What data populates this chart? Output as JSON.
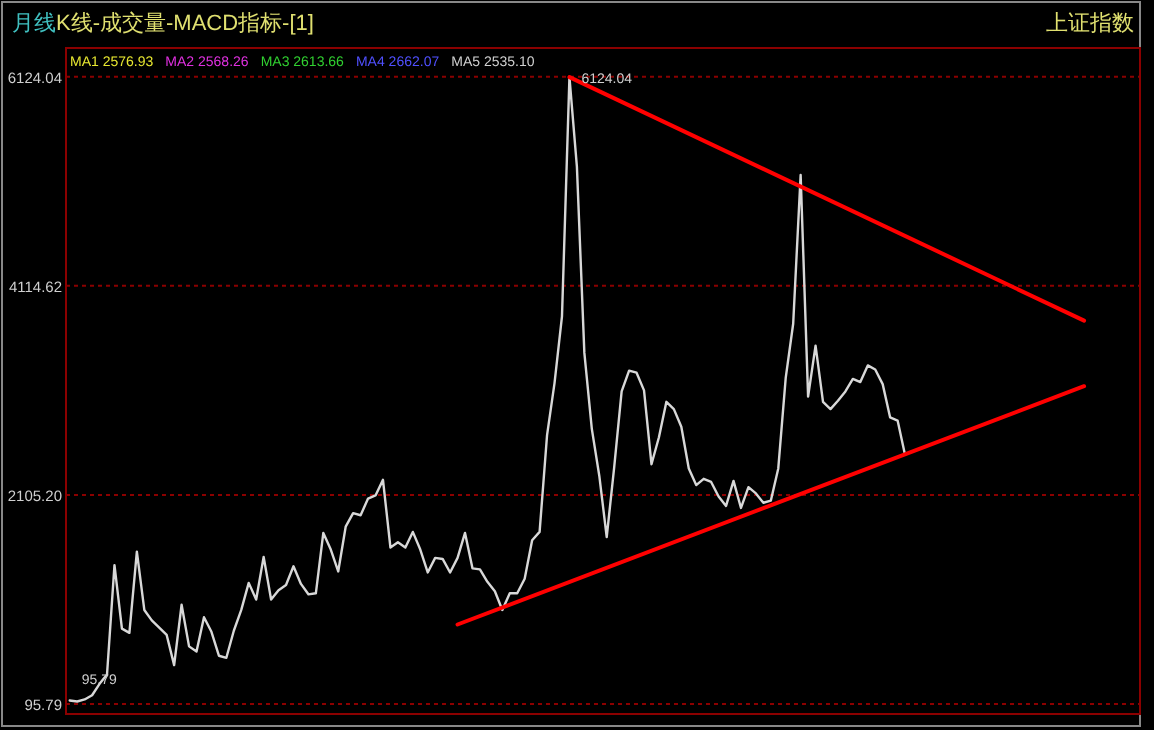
{
  "chart_data": {
    "type": "line",
    "title": "K线-成交量-MACD指标-[1]",
    "subtitle": "上证指数",
    "annotations": [
      "月线",
      "MA1 2576.93",
      "MA2 2568.26",
      "MA3 2613.66",
      "MA4 2662.07",
      "MA5 2535.10",
      "6124.04",
      "95.79"
    ],
    "categories": [
      null,
      null,
      null,
      null,
      null,
      null,
      null,
      null,
      null,
      null,
      null,
      null,
      null,
      null,
      null,
      null,
      null,
      null,
      null,
      null,
      null,
      null,
      null,
      null,
      null,
      null,
      null,
      null,
      null,
      null,
      null,
      null,
      null,
      null,
      null,
      null,
      null,
      null,
      null,
      null,
      null,
      null,
      null,
      null,
      null,
      null,
      null,
      null,
      null,
      null,
      null,
      null,
      null,
      null,
      null,
      null,
      null,
      null,
      null,
      null,
      null,
      null,
      null,
      null,
      null,
      null,
      null,
      null,
      null,
      null,
      null,
      null,
      null,
      null,
      null,
      null,
      null,
      null,
      null,
      null,
      null,
      null,
      null,
      null,
      null,
      null,
      null,
      null,
      null,
      null,
      null,
      null,
      null,
      null,
      null,
      null,
      null,
      null,
      null,
      null,
      null,
      null,
      null,
      null,
      null,
      null,
      null,
      null,
      null,
      null,
      null,
      null,
      null,
      null,
      null,
      null,
      null,
      null,
      null,
      null,
      null,
      null,
      null,
      null,
      null,
      null,
      null,
      null,
      null,
      null,
      null,
      null,
      null,
      null,
      null,
      null,
      null,
      null,
      null,
      null,
      null,
      null,
      null,
      null
    ],
    "ylim": [
      0,
      6400
    ],
    "yticks": [
      {
        "value": 95.79,
        "label": "95.79"
      },
      {
        "value": 2105.2,
        "label": "2105.20"
      },
      {
        "value": 4114.62,
        "label": "4114.62"
      },
      {
        "value": 6124.04,
        "label": "6124.04"
      }
    ],
    "tick_labels": "y",
    "grid": "y",
    "line_style": "solid",
    "series": [
      {
        "color": "#d8d8d8",
        "values": [
          130,
          120,
          140,
          180,
          290,
          380,
          1430,
          820,
          780,
          1560,
          1000,
          900,
          830,
          760,
          470,
          1050,
          650,
          600,
          930,
          790,
          560,
          540,
          800,
          1000,
          1260,
          1100,
          1510,
          1100,
          1190,
          1240,
          1420,
          1250,
          1150,
          1160,
          1740,
          1580,
          1370,
          1800,
          1930,
          1910,
          2070,
          2100,
          2250,
          1600,
          1650,
          1600,
          1750,
          1580,
          1360,
          1500,
          1490,
          1360,
          1500,
          1740,
          1400,
          1390,
          1270,
          1180,
          1000,
          1160,
          1160,
          1300,
          1670,
          1750,
          2680,
          3180,
          3820,
          6120,
          5260,
          3470,
          2740,
          2290,
          1700,
          2370,
          3100,
          3300,
          3280,
          3110,
          2400,
          2660,
          3000,
          2930,
          2760,
          2360,
          2200,
          2260,
          2230,
          2090,
          2000,
          2240,
          1980,
          2180,
          2120,
          2030,
          2050,
          2360,
          3230,
          3750,
          5180,
          3050,
          3540,
          3000,
          2930,
          3010,
          3100,
          3220,
          3190,
          3350,
          3310,
          3170,
          2850,
          2820,
          2490,
          null,
          null,
          null,
          null,
          null,
          null,
          null,
          null,
          null,
          null,
          null,
          null,
          null,
          null,
          null,
          null,
          null,
          null,
          null,
          null,
          null,
          null,
          null,
          null,
          null,
          null,
          null,
          null,
          null,
          null,
          null
        ]
      },
      {
        "color": "#ff0000",
        "values": [
          null,
          null,
          null,
          null,
          null,
          null,
          null,
          null,
          null,
          null,
          null,
          null,
          null,
          null,
          null,
          null,
          null,
          null,
          null,
          null,
          null,
          null,
          null,
          null,
          null,
          null,
          null,
          null,
          null,
          null,
          null,
          null,
          null,
          null,
          null,
          null,
          null,
          null,
          null,
          null,
          null,
          null,
          null,
          null,
          null,
          null,
          null,
          null,
          null,
          null,
          null,
          null,
          null,
          null,
          null,
          null,
          null,
          null,
          null,
          null,
          null,
          null,
          null,
          null,
          null,
          null,
          null,
          6120,
          null,
          null,
          null,
          null,
          null,
          null,
          null,
          null,
          null,
          null,
          null,
          null,
          null,
          null,
          null,
          null,
          null,
          null,
          null,
          null,
          null,
          null,
          null,
          null,
          null,
          null,
          null,
          null,
          null,
          null,
          null,
          null,
          null,
          null,
          null,
          null,
          null,
          null,
          null,
          null,
          null,
          null,
          null,
          null,
          null,
          null,
          null,
          null,
          null,
          null,
          null,
          null,
          null,
          null,
          null,
          null,
          null,
          null,
          null,
          null,
          null,
          null,
          null,
          null,
          null,
          null,
          null,
          null,
          3780,
          null,
          null,
          null,
          null,
          null,
          null,
          null
        ]
      },
      {
        "color": "#ff0000",
        "values": [
          null,
          null,
          null,
          null,
          null,
          null,
          null,
          null,
          null,
          null,
          null,
          null,
          null,
          null,
          null,
          null,
          null,
          null,
          null,
          null,
          null,
          null,
          null,
          null,
          null,
          null,
          null,
          null,
          null,
          null,
          null,
          null,
          null,
          null,
          null,
          null,
          null,
          null,
          null,
          null,
          null,
          null,
          null,
          null,
          null,
          null,
          null,
          null,
          null,
          null,
          null,
          null,
          860,
          null,
          null,
          null,
          null,
          null,
          null,
          null,
          null,
          null,
          null,
          null,
          null,
          null,
          null,
          null,
          null,
          null,
          null,
          null,
          null,
          null,
          null,
          null,
          null,
          null,
          null,
          null,
          null,
          null,
          null,
          null,
          null,
          null,
          null,
          null,
          null,
          null,
          null,
          null,
          null,
          null,
          null,
          null,
          null,
          null,
          null,
          null,
          null,
          null,
          null,
          null,
          null,
          null,
          null,
          null,
          null,
          null,
          null,
          null,
          null,
          null,
          null,
          null,
          null,
          null,
          null,
          null,
          null,
          null,
          null,
          null,
          null,
          null,
          null,
          null,
          null,
          null,
          null,
          null,
          null,
          null,
          null,
          null,
          3150,
          null,
          null,
          null,
          null,
          null,
          null,
          null
        ]
      }
    ]
  }
}
